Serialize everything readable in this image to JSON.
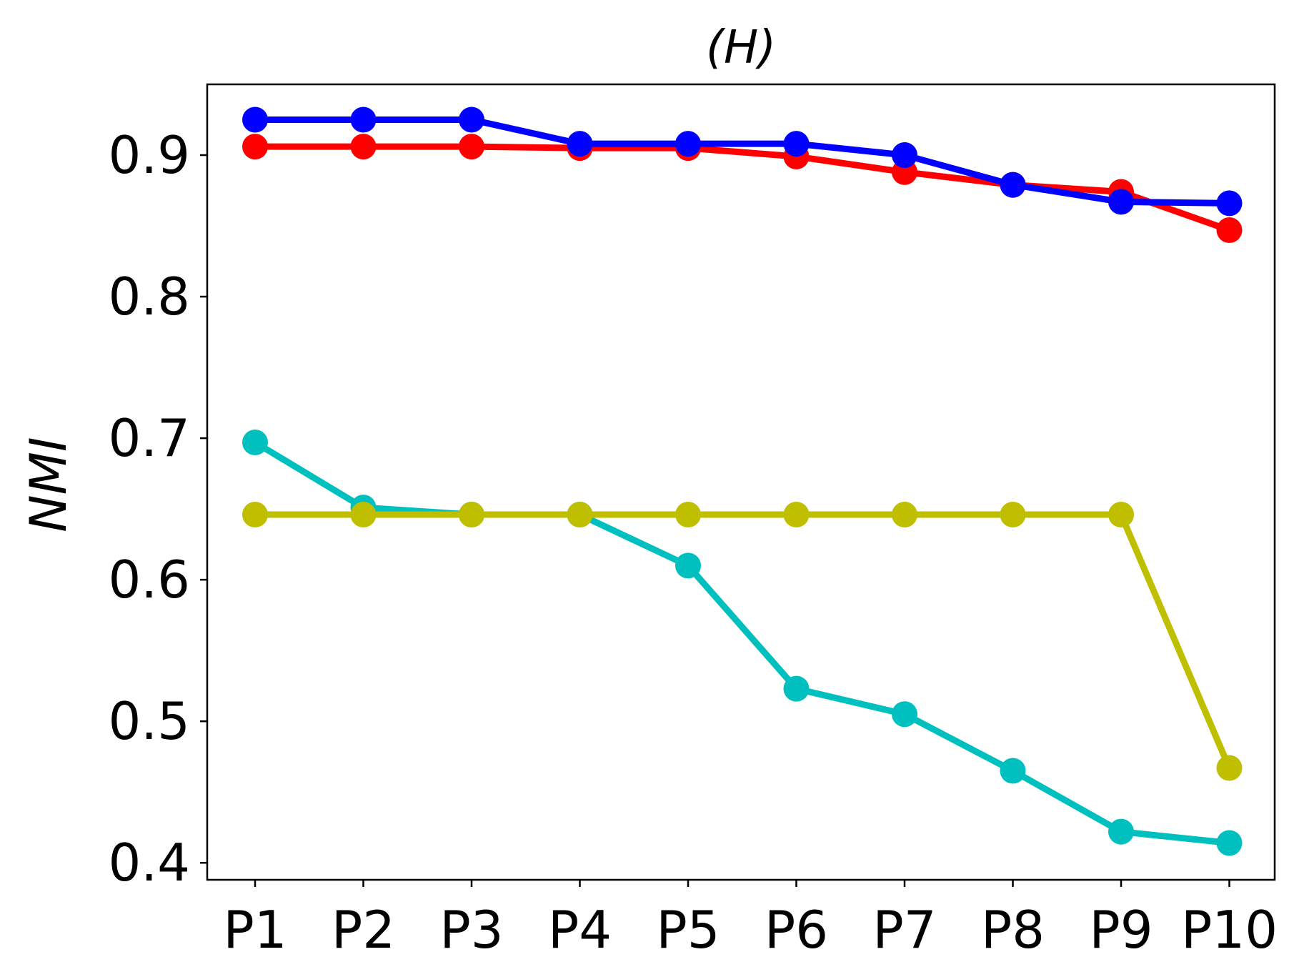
{
  "chart_data": {
    "type": "line",
    "title": "(H)",
    "xlabel": "",
    "ylabel": "NMI",
    "categories": [
      "P1",
      "P2",
      "P3",
      "P4",
      "P5",
      "P6",
      "P7",
      "P8",
      "P9",
      "P10"
    ],
    "yticks": [
      "0.4",
      "0.5",
      "0.6",
      "0.7",
      "0.8",
      "0.9"
    ],
    "ylim": [
      0.388,
      0.95
    ],
    "grid": false,
    "series": [
      {
        "color": "#ff0000",
        "values": [
          0.906,
          0.906,
          0.906,
          0.905,
          0.905,
          0.899,
          0.888,
          0.879,
          0.874,
          0.847
        ]
      },
      {
        "color": "#0000ff",
        "values": [
          0.925,
          0.925,
          0.925,
          0.908,
          0.908,
          0.908,
          0.9,
          0.879,
          0.867,
          0.866
        ]
      },
      {
        "color": "#00bfbf",
        "values": [
          0.697,
          0.651,
          0.646,
          0.646,
          0.61,
          0.523,
          0.505,
          0.465,
          0.422,
          0.414
        ]
      },
      {
        "color": "#bfbf00",
        "values": [
          0.646,
          0.646,
          0.646,
          0.646,
          0.646,
          0.646,
          0.646,
          0.646,
          0.646,
          0.467
        ]
      }
    ]
  }
}
